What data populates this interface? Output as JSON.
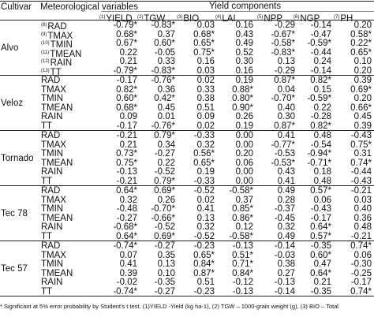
{
  "header": {
    "cultivar": "Cultivar",
    "met_vars": "Meteorological variables",
    "yield_components": "Yield components",
    "columns": [
      {
        "sup": "(1)",
        "label": "YIELD"
      },
      {
        "sup": "(2)",
        "label": "TGW"
      },
      {
        "sup": "(3)",
        "label": "BIO"
      },
      {
        "sup": "(4)",
        "label": "LAI"
      },
      {
        "sup": "(5)",
        "label": "NPP"
      },
      {
        "sup": "(6)",
        "label": "NGP"
      },
      {
        "sup": "(7)",
        "label": "PH"
      }
    ]
  },
  "groups": [
    {
      "cultivar": "Alvo",
      "rows": [
        {
          "sup": "(8)",
          "var": "RAD",
          "vals": [
            "-0.79*",
            "-0.83*",
            "0.03",
            "0.16",
            "-0.29",
            "-0.14",
            "0.20"
          ]
        },
        {
          "sup": "(9)",
          "var": "TMAX",
          "vals": [
            "0.68*",
            "0.37",
            "0.68*",
            "0.43",
            "-0.67*",
            "-0.47",
            "0.58*"
          ]
        },
        {
          "sup": "(10)",
          "var": "TMIN",
          "vals": [
            "0.67*",
            "0.60*",
            "0.65*",
            "0.49",
            "-0.58*",
            "-0.59*",
            "0.22*"
          ]
        },
        {
          "sup": "(11)",
          "var": "TMEAN",
          "vals": [
            "0.22",
            "-0.05",
            "0.75*",
            "0.52",
            "-0.83*",
            "-0.44",
            "0.65*"
          ]
        },
        {
          "sup": "(12)",
          "var": "RAIN",
          "vals": [
            "0.21",
            "0.33",
            "0.16",
            "0.30",
            "0.13",
            "0.24",
            "0.10"
          ]
        },
        {
          "sup": "(13)",
          "var": "TT",
          "vals": [
            "-0.79*",
            "-0.83*",
            "0.03",
            "0.16",
            "-0.29",
            "-0.14",
            "0.20"
          ]
        }
      ]
    },
    {
      "cultivar": "Veloz",
      "rows": [
        {
          "sup": "",
          "var": "RAD",
          "vals": [
            "-0.17",
            "-0.76*",
            "0.02",
            "0.19",
            "0.87*",
            "0.82*",
            "0.39"
          ]
        },
        {
          "sup": "",
          "var": "TMAX",
          "vals": [
            "0.82*",
            "0.36",
            "0.33",
            "0.88*",
            "0.04",
            "0.15",
            "0.69*"
          ]
        },
        {
          "sup": "",
          "var": "TMIN",
          "vals": [
            "0.60*",
            "0.42*",
            "0.38",
            "0.80*",
            "-0.70*",
            "-0.59*",
            "0.20"
          ]
        },
        {
          "sup": "",
          "var": "TMEAN",
          "vals": [
            "0.68*",
            "0.45",
            "0.51",
            "0.90*",
            "0.40",
            "0.22",
            "0.66*"
          ]
        },
        {
          "sup": "",
          "var": "RAIN",
          "vals": [
            "0.09",
            "0.01",
            "0.09",
            "0.26",
            "0.30",
            "-0.28",
            "0.45"
          ]
        },
        {
          "sup": "",
          "var": "TT",
          "vals": [
            "-0.17",
            "-0.76*",
            "0.02",
            "0.19",
            "0.87*",
            "0.82*",
            "0.39"
          ]
        }
      ]
    },
    {
      "cultivar": "Tornado",
      "rows": [
        {
          "sup": "",
          "var": "RAD",
          "vals": [
            "-0.21",
            "0.79*",
            "-0.33",
            "0.00",
            "0.41",
            "0.48",
            "-0.43"
          ]
        },
        {
          "sup": "",
          "var": "TMAX",
          "vals": [
            "0.21",
            "0.34",
            "0.32",
            "0.00",
            "-0.77*",
            "-0.54",
            "0.75*"
          ]
        },
        {
          "sup": "",
          "var": "TMIN",
          "vals": [
            "0.73*",
            "-0.27",
            "0.56*",
            "0.20",
            "-0.53",
            "-0.94*",
            "0.31"
          ]
        },
        {
          "sup": "",
          "var": "TMEAN",
          "vals": [
            "0.75*",
            "0.22",
            "0.65*",
            "0.06",
            "-0.53*",
            "-0.71*",
            "0.74*"
          ]
        },
        {
          "sup": "",
          "var": "RAIN",
          "vals": [
            "-0.13",
            "-0.52",
            "0.19",
            "0.00",
            "0.43",
            "0.18",
            "-0.44"
          ]
        },
        {
          "sup": "",
          "var": "TT",
          "vals": [
            "-0.21",
            "0.79*",
            "-0.33",
            "0.00",
            "0.41",
            "0.48",
            "-0.43"
          ]
        }
      ]
    },
    {
      "cultivar": "Tec 78",
      "rows": [
        {
          "sup": "",
          "var": "RAD",
          "vals": [
            "0.64*",
            "0.69*",
            "-0.52",
            "-0.58*",
            "0.49",
            "0.57*",
            "-0.21"
          ]
        },
        {
          "sup": "",
          "var": "TMAX",
          "vals": [
            "0.32",
            "0.26",
            "0.02",
            "0.37",
            "0.28",
            "0.06",
            "0.03"
          ]
        },
        {
          "sup": "",
          "var": "TMIN",
          "vals": [
            "-0.48",
            "-0.70*",
            "0.41",
            "0.85*",
            "-0.37",
            "-0.43",
            "0.40"
          ]
        },
        {
          "sup": "",
          "var": "TMEAN",
          "vals": [
            "-0.27",
            "-0.66*",
            "0.13",
            "0.86*",
            "-0.45",
            "-0.17",
            "0.36"
          ]
        },
        {
          "sup": "",
          "var": "RAIN",
          "vals": [
            "-0.68*",
            "-0.52",
            "0.32",
            "0.12",
            "0.32",
            "0.64*",
            "0.48"
          ]
        },
        {
          "sup": "",
          "var": "TT",
          "vals": [
            "0.64*",
            "0.69*",
            "-0.52",
            "-0.58*",
            "0.49",
            "0.57*",
            "-0.21"
          ]
        }
      ]
    },
    {
      "cultivar": "Tec 57",
      "rows": [
        {
          "sup": "",
          "var": "RAD",
          "vals": [
            "-0.74*",
            "-0.27",
            "-0.23",
            "-0.13",
            "-0.14",
            "-0.35",
            "0.74*"
          ]
        },
        {
          "sup": "",
          "var": "TMAX",
          "vals": [
            "0.07",
            "0.35",
            "0.65*",
            "0.51*",
            "-0.03",
            "0.60*",
            "0.06"
          ]
        },
        {
          "sup": "",
          "var": "TMIN",
          "vals": [
            "0.41",
            "0.13",
            "0.84*",
            "0.71*",
            "0.38",
            "0.47",
            "-0.30"
          ]
        },
        {
          "sup": "",
          "var": "TMEAN",
          "vals": [
            "0.39",
            "0.10",
            "0.87*",
            "0.84*",
            "0.27",
            "0.64*",
            "-0.25"
          ]
        },
        {
          "sup": "",
          "var": "RAIN",
          "vals": [
            "-0.02",
            "-0.35",
            "0.51",
            "-0.12",
            "-0.13",
            "0.21",
            "-0.17"
          ]
        },
        {
          "sup": "",
          "var": "TT",
          "vals": [
            "-0.74*",
            "-0.27",
            "-0.23",
            "-0.13",
            "-0.14",
            "-0.35",
            "0.74*"
          ]
        }
      ]
    }
  ],
  "footnote": "* Significant at 5% error probability by Student's t test. (1)YIELD -Yield (kg ha-1), (2) TGW – 1000-grain weight (g), (3) BIO – Total"
}
